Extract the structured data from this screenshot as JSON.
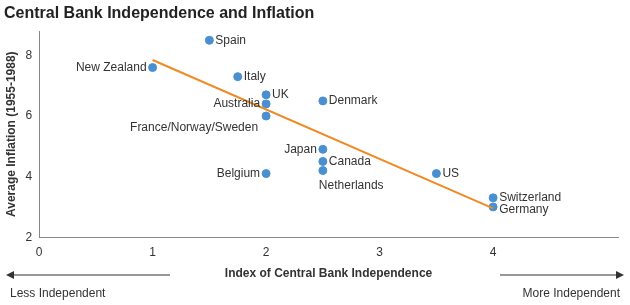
{
  "chart_data": {
    "type": "scatter",
    "title": "Central Bank Independence and Inflation",
    "x_label": "Index of Central Bank Independence",
    "y_label": "Average Inflation (1955-1988)",
    "labels": [
      "New Zealand",
      "Spain",
      "Italy",
      "UK",
      "Australia",
      "France/Norway/Sweden",
      "Denmark",
      "Japan",
      "Canada",
      "Netherlands",
      "Belgium",
      "US",
      "Switzerland",
      "Germany"
    ],
    "x": [
      1,
      1.5,
      1.75,
      2,
      2,
      2,
      2.5,
      2.5,
      2.5,
      2.5,
      2,
      3.5,
      4,
      4
    ],
    "values": [
      7.6,
      8.5,
      7.3,
      6.7,
      6.4,
      6.0,
      6.5,
      4.9,
      4.5,
      4.2,
      4.1,
      4.1,
      3.3,
      3.0
    ],
    "color": "#4a90d0",
    "marker": "circle",
    "trend_line": {
      "x": [
        1,
        4
      ],
      "values": [
        7.85,
        2.95
      ],
      "color": "#f08a24",
      "line_style": "solid"
    },
    "annotations": {
      "left": "Less Independent",
      "right": "More Independent"
    },
    "xlim": [
      0,
      5.1
    ],
    "xticks": [
      0,
      1,
      2,
      3,
      4
    ],
    "ylim": [
      2,
      8.8
    ],
    "yticks": [
      2,
      4,
      6,
      8
    ],
    "grid": false
  }
}
